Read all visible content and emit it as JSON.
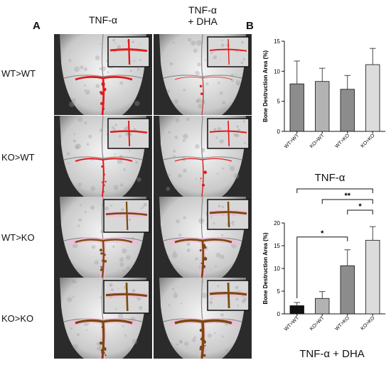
{
  "figure": {
    "panel_a_label": "A",
    "panel_b_label": "B",
    "columns": [
      "TNF-α",
      "TNF-α\n+ DHA"
    ],
    "rows": [
      "WT>WT",
      "KO>WT",
      "WT>KO",
      "KO>KO"
    ]
  },
  "colors": {
    "black_bar": "#111111",
    "dark_grey_bar": "#8c8c8c",
    "mid_grey_bar": "#b3b3b3",
    "light_grey_bar": "#dcdcdc",
    "lesion_red": "#e21b1b",
    "lesion_brown": "#7a4a10",
    "lesion_pink": "#f5b8d8"
  },
  "chart_data": [
    {
      "type": "bar",
      "title": "TNF-α",
      "xlabel": "",
      "ylabel": "Bone Destruction Area (%)",
      "categories": [
        "WT>WT",
        "KO>WT",
        "WT>KO",
        "KO>KO"
      ],
      "values": [
        7.9,
        8.3,
        7.0,
        11.1
      ],
      "errors": [
        3.8,
        2.2,
        2.3,
        2.7
      ],
      "bar_colors": [
        "#8c8c8c",
        "#b3b3b3",
        "#8c8c8c",
        "#dcdcdc"
      ],
      "ylim": [
        0,
        15
      ],
      "yticks": [
        "0",
        "5",
        "10",
        "15"
      ],
      "grid": false,
      "significance": []
    },
    {
      "type": "bar",
      "title": "TNF-α + DHA",
      "xlabel": "",
      "ylabel": "Bone Destruction Area (%)",
      "categories": [
        "WT>WT",
        "KO>WT",
        "WT>KO",
        "KO>KO"
      ],
      "values": [
        1.8,
        3.4,
        10.6,
        16.2
      ],
      "errors": [
        0.7,
        1.5,
        3.5,
        3.0
      ],
      "bar_colors": [
        "#111111",
        "#b3b3b3",
        "#8c8c8c",
        "#dcdcdc"
      ],
      "ylim": [
        0,
        20
      ],
      "yticks": [
        "0",
        "5",
        "10",
        "15",
        "20"
      ],
      "grid": false,
      "significance": [
        {
          "from": 0,
          "to": 3,
          "label": "**"
        },
        {
          "from": 1,
          "to": 3,
          "label": "**"
        },
        {
          "from": 2,
          "to": 3,
          "label": "*"
        },
        {
          "from": 0,
          "to": 2,
          "label": "*"
        }
      ]
    }
  ]
}
